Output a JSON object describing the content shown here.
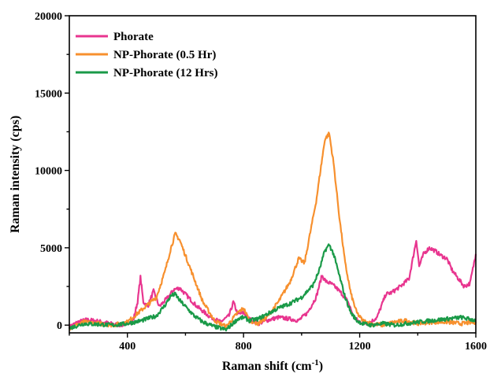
{
  "chart_data": {
    "type": "line",
    "xlabel": "Raman shift (cm",
    "xlabel_sup": "-1",
    "xlabel_close": ")",
    "ylabel": "Raman intensity (cps)",
    "xlim": [
      200,
      1600
    ],
    "ylim": [
      -500,
      20000
    ],
    "xticks": [
      400,
      800,
      1200,
      1600
    ],
    "yticks": [
      0,
      5000,
      10000,
      15000,
      20000
    ],
    "grid": false,
    "legend_position": "top-left",
    "series": [
      {
        "name": "Phorate",
        "color": "#e8358f",
        "x": [
          200,
          230,
          260,
          300,
          340,
          380,
          420,
          435,
          445,
          455,
          470,
          490,
          510,
          540,
          560,
          580,
          600,
          640,
          680,
          720,
          750,
          765,
          780,
          800,
          820,
          850,
          880,
          920,
          960,
          990,
          1020,
          1050,
          1070,
          1085,
          1100,
          1120,
          1140,
          1160,
          1180,
          1200,
          1230,
          1260,
          1290,
          1310,
          1340,
          1370,
          1385,
          1395,
          1405,
          1420,
          1440,
          1460,
          1480,
          1500,
          1520,
          1540,
          1560,
          1580,
          1600
        ],
        "y": [
          -100,
          200,
          350,
          250,
          100,
          0,
          300,
          1500,
          3100,
          1500,
          1200,
          2200,
          1200,
          1800,
          2300,
          2400,
          2000,
          1200,
          600,
          200,
          600,
          1500,
          700,
          800,
          400,
          100,
          300,
          500,
          400,
          300,
          800,
          1800,
          3200,
          2800,
          2700,
          2400,
          2000,
          1500,
          500,
          200,
          100,
          500,
          2000,
          2100,
          2500,
          3000,
          4500,
          5500,
          3800,
          4600,
          5000,
          4800,
          4500,
          4300,
          3500,
          3000,
          2500,
          2700,
          4600
        ]
      },
      {
        "name": "NP-Phorate (0.5 Hr)",
        "color": "#f7902e",
        "x": [
          200,
          250,
          300,
          350,
          400,
          450,
          500,
          530,
          550,
          565,
          580,
          600,
          630,
          660,
          700,
          740,
          780,
          800,
          820,
          850,
          880,
          920,
          960,
          990,
          1010,
          1030,
          1050,
          1065,
          1080,
          1095,
          1110,
          1130,
          1150,
          1170,
          1190,
          1210,
          1240,
          1280,
          1320,
          1360,
          1400,
          1450,
          1500,
          1550,
          1600
        ],
        "y": [
          -200,
          200,
          100,
          0,
          200,
          1000,
          1800,
          3500,
          5000,
          5900,
          5500,
          4500,
          3000,
          1500,
          300,
          -100,
          800,
          1100,
          300,
          100,
          500,
          1500,
          2800,
          4300,
          4000,
          6000,
          8000,
          10000,
          12000,
          12400,
          10500,
          7000,
          4000,
          2000,
          800,
          300,
          100,
          0,
          200,
          300,
          100,
          200,
          200,
          100,
          200
        ]
      },
      {
        "name": "NP-Phorate (12 Hrs)",
        "color": "#1a9a48",
        "x": [
          200,
          250,
          300,
          350,
          400,
          450,
          500,
          530,
          550,
          565,
          580,
          600,
          630,
          660,
          700,
          740,
          780,
          800,
          820,
          850,
          880,
          920,
          960,
          1000,
          1040,
          1060,
          1080,
          1095,
          1110,
          1130,
          1150,
          1170,
          1190,
          1210,
          1240,
          1280,
          1320,
          1360,
          1400,
          1450,
          1500,
          1550,
          1600
        ],
        "y": [
          -200,
          100,
          50,
          0,
          100,
          300,
          600,
          1300,
          1900,
          2000,
          1600,
          1200,
          600,
          200,
          -100,
          -300,
          400,
          500,
          300,
          400,
          700,
          1100,
          1400,
          1800,
          2600,
          3500,
          4800,
          5200,
          4600,
          3200,
          1800,
          800,
          300,
          100,
          0,
          100,
          0,
          100,
          200,
          300,
          400,
          500,
          300
        ]
      }
    ]
  }
}
